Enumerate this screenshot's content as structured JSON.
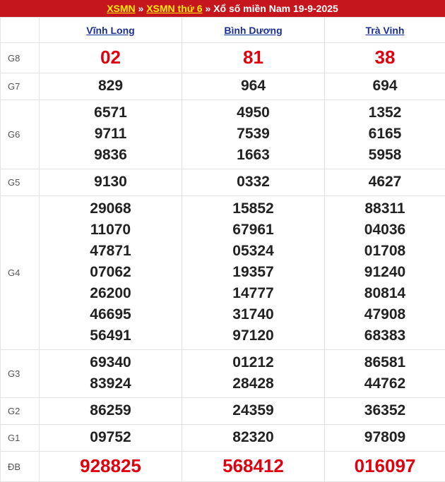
{
  "header": {
    "links": [
      "XSMN",
      "XSMN thứ 6"
    ],
    "separator": "»",
    "title": "Xổ số miền Nam 19-9-2025"
  },
  "table": {
    "columns": [
      "Vĩnh Long",
      "Bình Dương",
      "Trà Vinh"
    ],
    "rows": [
      {
        "label": "G8",
        "cells": [
          [
            "02"
          ],
          [
            "81"
          ],
          [
            "38"
          ]
        ]
      },
      {
        "label": "G7",
        "cells": [
          [
            "829"
          ],
          [
            "964"
          ],
          [
            "694"
          ]
        ]
      },
      {
        "label": "G6",
        "cells": [
          [
            "6571",
            "9711",
            "9836"
          ],
          [
            "4950",
            "7539",
            "1663"
          ],
          [
            "1352",
            "6165",
            "5958"
          ]
        ]
      },
      {
        "label": "G5",
        "cells": [
          [
            "9130"
          ],
          [
            "0332"
          ],
          [
            "4627"
          ]
        ]
      },
      {
        "label": "G4",
        "cells": [
          [
            "29068",
            "11070",
            "47871",
            "07062",
            "26200",
            "46695",
            "56491"
          ],
          [
            "15852",
            "67961",
            "05324",
            "19357",
            "14777",
            "31740",
            "97120"
          ],
          [
            "88311",
            "04036",
            "01708",
            "91240",
            "80814",
            "47908",
            "68383"
          ]
        ]
      },
      {
        "label": "G3",
        "cells": [
          [
            "69340",
            "83924"
          ],
          [
            "01212",
            "28428"
          ],
          [
            "86581",
            "44762"
          ]
        ]
      },
      {
        "label": "G2",
        "cells": [
          [
            "86259"
          ],
          [
            "24359"
          ],
          [
            "36352"
          ]
        ]
      },
      {
        "label": "G1",
        "cells": [
          [
            "09752"
          ],
          [
            "82320"
          ],
          [
            "97809"
          ]
        ]
      },
      {
        "label": "ĐB",
        "cells": [
          [
            "928825"
          ],
          [
            "568412"
          ],
          [
            "016097"
          ]
        ]
      }
    ]
  }
}
